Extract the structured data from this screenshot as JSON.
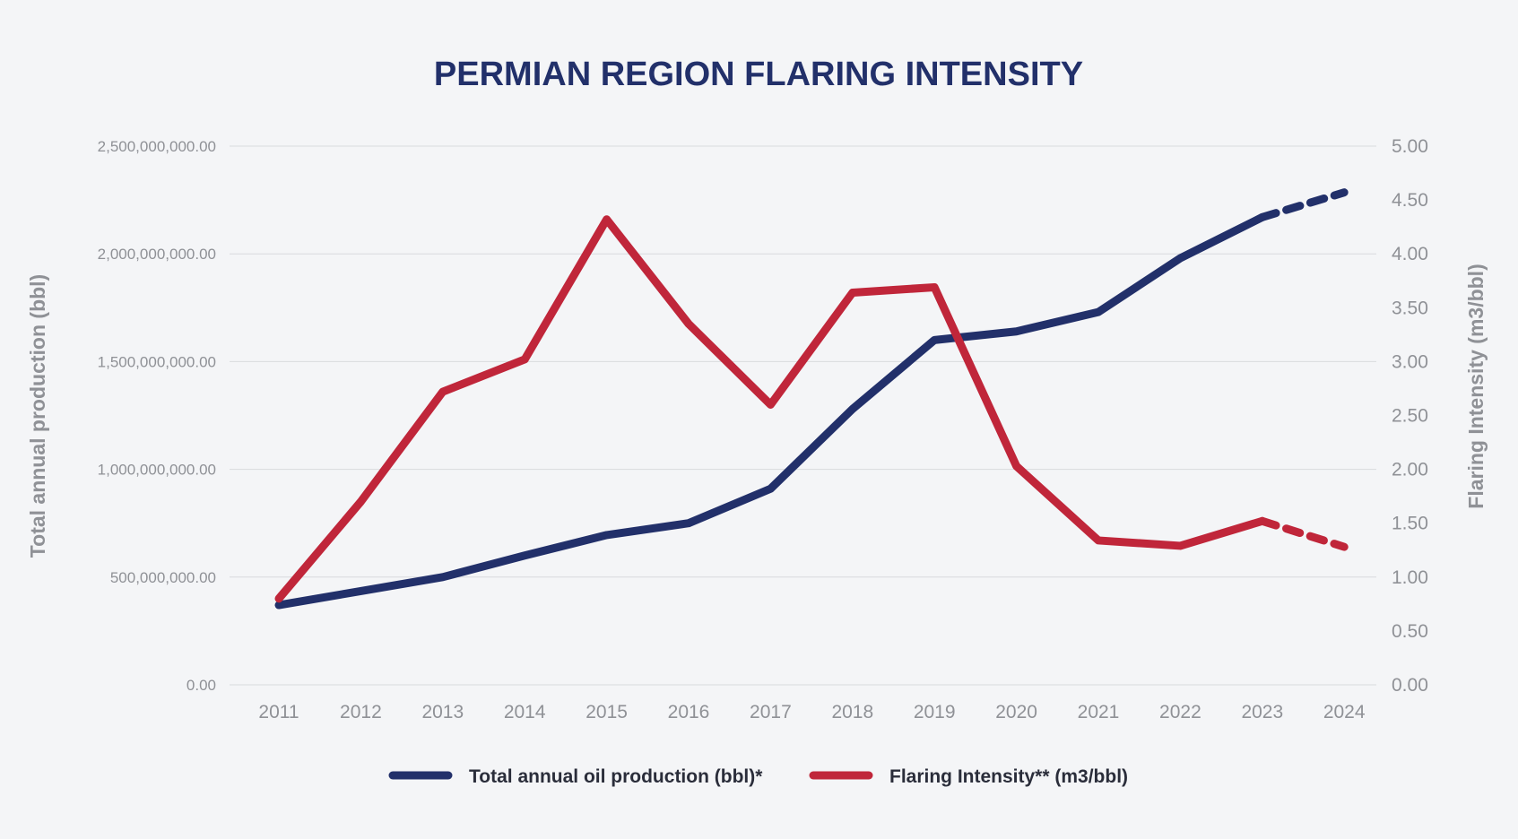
{
  "chart_data": {
    "type": "line",
    "title": "PERMIAN REGION FLARING INTENSITY",
    "x": [
      "2011",
      "2012",
      "2013",
      "2014",
      "2015",
      "2016",
      "2017",
      "2018",
      "2019",
      "2020",
      "2021",
      "2022",
      "2023",
      "2024"
    ],
    "ylabel_left": "Total annual production (bbl)",
    "ylabel_right": "Flaring Intensity (m3/bbl)",
    "ylim_left": [
      0,
      2500000000
    ],
    "ylim_right": [
      0,
      5
    ],
    "yticks_left": [
      "0.00",
      "500,000,000.00",
      "1,000,000,000.00",
      "1,500,000,000.00",
      "2,000,000,000.00",
      "2,500,000,000.00"
    ],
    "yticks_right": [
      "0.00",
      "0.50",
      "1.00",
      "1.50",
      "2.00",
      "2.50",
      "3.00",
      "3.50",
      "4.00",
      "4.50",
      "5.00"
    ],
    "grid": true,
    "legend_position": "bottom",
    "series": [
      {
        "name": "Total annual oil production (bbl)*",
        "axis": "left",
        "color": "#22306a",
        "values": [
          370000000,
          435000000,
          500000000,
          600000000,
          695000000,
          750000000,
          910000000,
          1280000000,
          1600000000,
          1640000000,
          1730000000,
          1980000000,
          2170000000,
          2285000000
        ],
        "dashed_from_index": 12
      },
      {
        "name": "Flaring Intensity** (m3/bbl)",
        "axis": "right",
        "color": "#c0263a",
        "values": [
          0.8,
          1.7,
          2.72,
          3.02,
          4.32,
          3.35,
          2.6,
          3.64,
          3.69,
          2.03,
          1.34,
          1.29,
          1.52,
          1.28
        ],
        "dashed_from_index": 12
      }
    ]
  }
}
